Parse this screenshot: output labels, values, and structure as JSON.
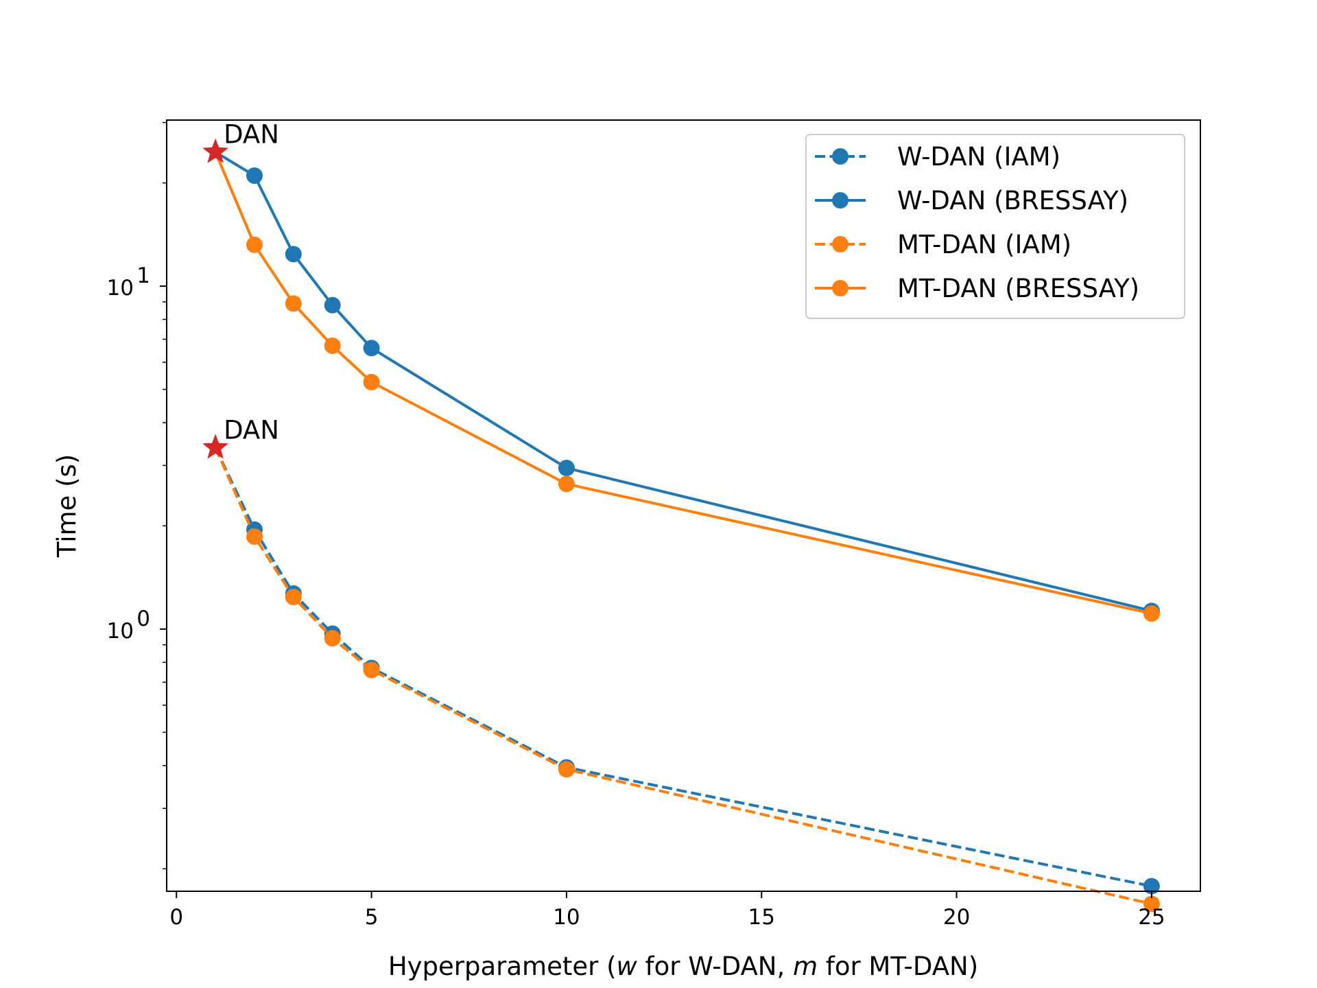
{
  "chart_data": {
    "type": "line",
    "title": "",
    "xlabel_parts": [
      "Hyperparameter (",
      "w",
      " for W-DAN, ",
      "m",
      " for MT-DAN)"
    ],
    "ylabel": "Time (s)",
    "yscale": "log",
    "xlim": [
      -0.25,
      26.25
    ],
    "ylim": [
      0.172,
      30.5
    ],
    "x_ticks": [
      0,
      5,
      10,
      15,
      20,
      25
    ],
    "x_tick_labels": [
      "0",
      "5",
      "10",
      "15",
      "20",
      "25"
    ],
    "y_ticks": [
      1,
      10
    ],
    "y_tick_labels": [
      {
        "base": "10",
        "exp": "0"
      },
      {
        "base": "10",
        "exp": "1"
      }
    ],
    "y_minor_ticks": [
      0.2,
      0.3,
      0.4,
      0.5,
      0.6,
      0.7,
      0.8,
      0.9,
      2,
      3,
      4,
      5,
      6,
      7,
      8,
      9,
      20,
      30
    ],
    "colors": {
      "blue": "#1f77b4",
      "orange": "#ff7f0e",
      "red": "#d62728"
    },
    "series": [
      {
        "name": "W-DAN (IAM)",
        "color": "#1f77b4",
        "style": "dashed",
        "x": [
          1,
          2,
          3,
          4,
          5,
          10,
          25
        ],
        "y": [
          3.38,
          1.95,
          1.27,
          0.97,
          0.77,
          0.395,
          0.178
        ]
      },
      {
        "name": "W-DAN (BRESSAY)",
        "color": "#1f77b4",
        "style": "solid",
        "x": [
          1,
          2,
          3,
          4,
          5,
          10,
          25
        ],
        "y": [
          24.6,
          21.0,
          12.4,
          8.8,
          6.6,
          2.95,
          1.13
        ]
      },
      {
        "name": "MT-DAN (IAM)",
        "color": "#ff7f0e",
        "style": "dashed",
        "x": [
          1,
          2,
          3,
          4,
          5,
          10,
          25
        ],
        "y": [
          3.38,
          1.86,
          1.24,
          0.94,
          0.76,
          0.39,
          0.158
        ]
      },
      {
        "name": "MT-DAN (BRESSAY)",
        "color": "#ff7f0e",
        "style": "solid",
        "x": [
          1,
          2,
          3,
          4,
          5,
          10,
          25
        ],
        "y": [
          24.6,
          13.2,
          8.9,
          6.7,
          5.25,
          2.65,
          1.11
        ]
      }
    ],
    "annotations": [
      {
        "text": "DAN",
        "x": 1,
        "y": 24.6,
        "marker": "star"
      },
      {
        "text": "DAN",
        "x": 1,
        "y": 3.38,
        "marker": "star"
      }
    ],
    "legend_position": "upper right"
  }
}
